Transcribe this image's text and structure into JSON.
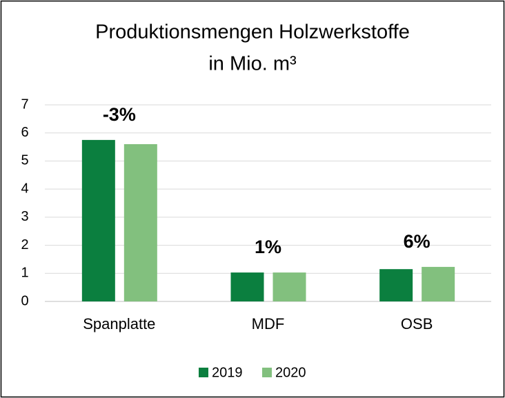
{
  "chart_data": {
    "type": "bar",
    "title": [
      "Produktionsmengen Holzwerkstoffe",
      "in Mio. m³"
    ],
    "categories": [
      "Spanplatte",
      "MDF",
      "OSB"
    ],
    "series": [
      {
        "name": "2019",
        "color": "#0b7f3f",
        "values": [
          5.75,
          1.03,
          1.15
        ]
      },
      {
        "name": "2020",
        "color": "#82c07e",
        "values": [
          5.6,
          1.03,
          1.23
        ]
      }
    ],
    "annotations": [
      {
        "text": "-3%",
        "color": "#ff0000"
      },
      {
        "text": "1%",
        "color": "#000000"
      },
      {
        "text": "6%",
        "color": "#000000"
      }
    ],
    "ylim": [
      0,
      7
    ],
    "yticks": [
      0,
      1,
      2,
      3,
      4,
      5,
      6,
      7
    ],
    "grid": true,
    "legend": "bottom"
  }
}
